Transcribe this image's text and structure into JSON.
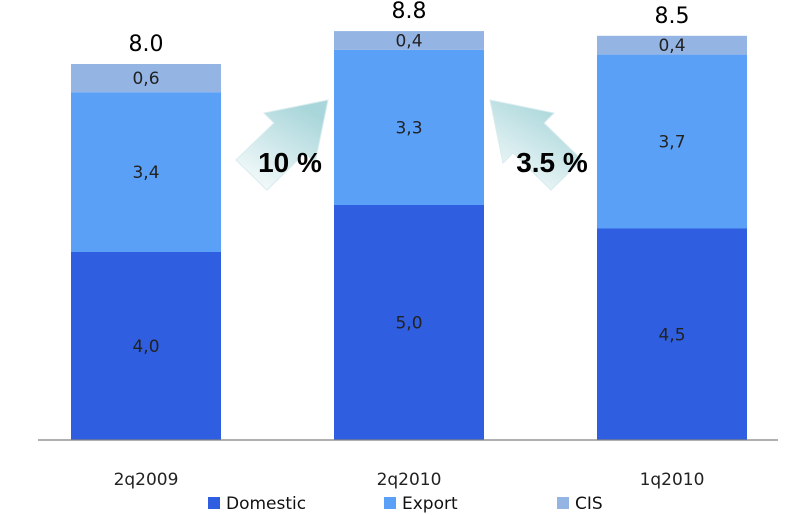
{
  "chart_data": {
    "type": "bar",
    "stacked": true,
    "categories": [
      "2q2009",
      "2q2010",
      "1q2010"
    ],
    "series": [
      {
        "name": "Domestic",
        "values": [
          4.0,
          5.0,
          4.5
        ],
        "labels": [
          "4,0",
          "5,0",
          "4,5"
        ],
        "color": "#2f5fe0"
      },
      {
        "name": "Export",
        "values": [
          3.4,
          3.3,
          3.7
        ],
        "labels": [
          "3,4",
          "3,3",
          "3,7"
        ],
        "color": "#5aa0f7"
      },
      {
        "name": "CIS",
        "values": [
          0.6,
          0.4,
          0.4
        ],
        "labels": [
          "0,6",
          "0,4",
          "0,4"
        ],
        "color": "#94b4e4"
      }
    ],
    "totals": [
      "8.0",
      "8.8",
      "8.5"
    ],
    "growth": [
      {
        "label": "10 %",
        "from": "2q2009",
        "to": "2q2010"
      },
      {
        "label": "3.5 %",
        "from": "1q2010",
        "to": "2q2010"
      }
    ],
    "ylim": [
      0,
      9
    ],
    "grid": false,
    "legend_position": "bottom"
  }
}
